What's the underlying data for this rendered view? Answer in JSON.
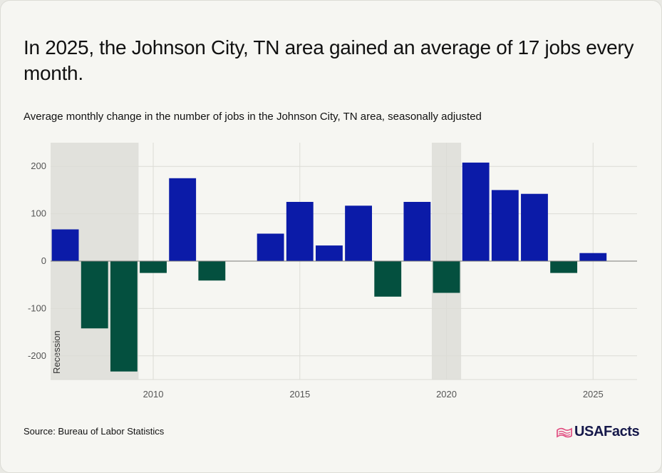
{
  "title": "In 2025, the Johnson City, TN area gained an average of 17 jobs every month.",
  "subtitle": "Average monthly change in the number of jobs in the Johnson City, TN area, seasonally adjusted",
  "source": "Source: Bureau of Labor Statistics",
  "logo_text": "USAFacts",
  "logo_icon": "us-map-flag-icon",
  "colors": {
    "positive": "#0b1ba8",
    "negative": "#04503f",
    "recession": "#e1e1dc",
    "grid": "#dcdcd6",
    "zero_line": "#7a7a78",
    "tick_label": "#555555",
    "logo_accent": "#e0457b"
  },
  "chart_data": {
    "type": "bar",
    "x": [
      2007,
      2008,
      2009,
      2010,
      2011,
      2012,
      2013,
      2014,
      2015,
      2016,
      2017,
      2018,
      2019,
      2020,
      2021,
      2022,
      2023,
      2024,
      2025
    ],
    "values": [
      67,
      -142,
      -233,
      -25,
      175,
      -41,
      0,
      58,
      125,
      33,
      117,
      -75,
      125,
      -67,
      208,
      150,
      142,
      -25,
      17
    ],
    "ylim": [
      -250,
      250
    ],
    "yticks": [
      200,
      100,
      0,
      -100,
      -200
    ],
    "ytick_labels": [
      "200",
      "100",
      "0",
      "-100",
      "-200"
    ],
    "xticks": [
      2010,
      2015,
      2020,
      2025
    ],
    "xtick_labels": [
      "2010",
      "2015",
      "2020",
      "2025"
    ],
    "xlim": [
      2006.5,
      2026.5
    ],
    "grid": true,
    "recessions": [
      {
        "start": 2006.5,
        "end": 2009.5,
        "label": "Recession"
      },
      {
        "start": 2019.5,
        "end": 2020.5,
        "label": ""
      }
    ],
    "xlabel": "",
    "ylabel": ""
  }
}
